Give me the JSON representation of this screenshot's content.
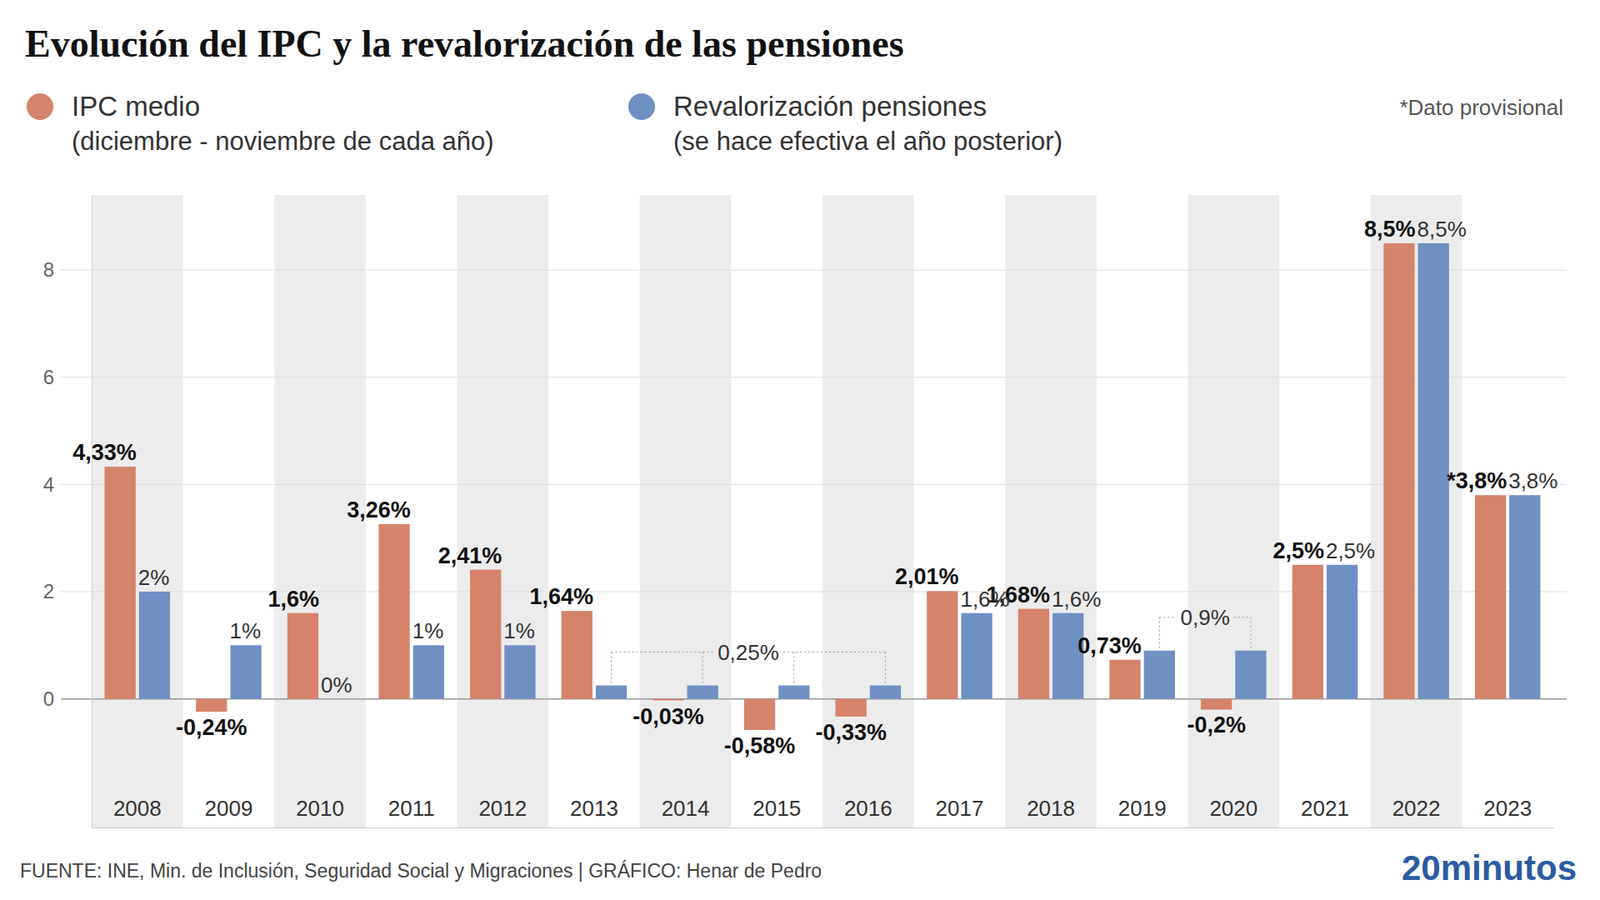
{
  "chart_data": {
    "type": "bar",
    "title": "Evolución del IPC y la revalorización de las pensiones",
    "annotations": [
      "*Dato provisional"
    ],
    "source": "FUENTE: INE, Min. de Inclusión, Seguridad Social y Migraciones  |  GRÁFICO: Henar de Pedro",
    "brand": "20minutos",
    "categories": [
      "2008",
      "2009",
      "2010",
      "2011",
      "2012",
      "2013",
      "2014",
      "2015",
      "2016",
      "2017",
      "2018",
      "2019",
      "2020",
      "2021",
      "2022",
      "2023"
    ],
    "series": [
      {
        "name": "IPC medio",
        "description": "(diciembre - noviembre de cada año)",
        "color": "#d6836b",
        "values": [
          4.33,
          -0.24,
          1.6,
          3.26,
          2.41,
          1.64,
          -0.03,
          -0.58,
          -0.33,
          2.01,
          1.68,
          0.73,
          -0.2,
          2.5,
          8.5,
          3.8
        ],
        "value_labels": [
          "4,33%",
          "-0,24%",
          "1,6%",
          "3,26%",
          "2,41%",
          "1,64%",
          "-0,03%",
          "-0,58%",
          "-0,33%",
          "2,01%",
          "1,68%",
          "0,73%",
          "-0,2%",
          "2,5%",
          "8,5%",
          "*3,8%"
        ]
      },
      {
        "name": "Revalorización pensiones",
        "description": "(se hace efectiva el año posterior)",
        "color": "#6f90c3",
        "values": [
          2,
          1,
          0,
          1,
          1,
          0.25,
          0.25,
          0.25,
          0.25,
          1.6,
          1.6,
          0.9,
          0.9,
          2.5,
          8.5,
          3.8
        ],
        "value_labels": [
          "2%",
          "1%",
          "0%",
          "1%",
          "1%",
          null,
          "0,25%",
          null,
          null,
          "1,6%",
          "1,6%",
          "0,9%",
          null,
          "2,5%",
          "8,5%",
          "3,8%"
        ]
      }
    ],
    "ylim": [
      -2.4,
      9.4
    ],
    "yticks": [
      0,
      2,
      4,
      6,
      8
    ],
    "grid": true,
    "legend": "top-left",
    "data_labels": true
  }
}
